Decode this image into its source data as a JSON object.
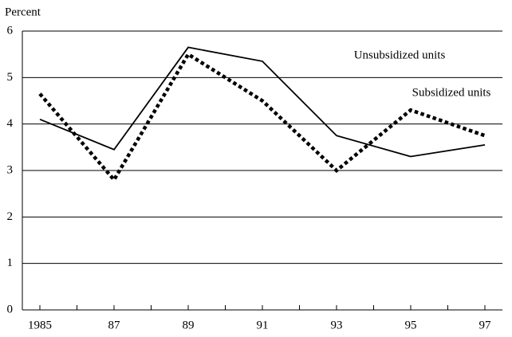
{
  "chart_data": {
    "type": "line",
    "y_label": "Percent",
    "categories": [
      "1985",
      "87",
      "89",
      "91",
      "93",
      "95",
      "97"
    ],
    "series": [
      {
        "name": "Unsubsidized units",
        "color": "#000000",
        "line_style": "solid",
        "values": [
          4.1,
          3.45,
          5.65,
          5.35,
          3.75,
          3.3,
          3.55
        ]
      },
      {
        "name": "Subsidized units",
        "color": "#000000",
        "line_style": "dotted",
        "values": [
          4.65,
          2.8,
          5.5,
          4.5,
          3.0,
          4.3,
          3.75
        ]
      }
    ],
    "ylim": [
      0,
      6
    ],
    "yticks": [
      0,
      1,
      2,
      3,
      4,
      5,
      6
    ],
    "grid": true
  }
}
